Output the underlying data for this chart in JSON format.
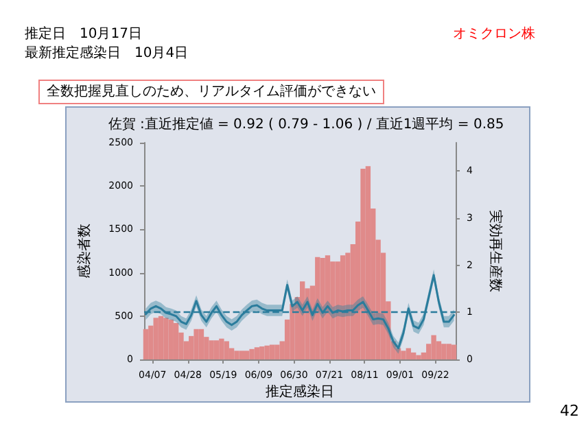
{
  "chart_data": {
    "type": "bar",
    "title": "佐賀 :直近推定値 = 0.92 ( 0.79 - 1.06 ) / 直近1週平均 = 0.85",
    "xlabel": "推定感染日",
    "ylabel": "感染者数",
    "y2label": "実効再生産数",
    "annotations": [
      "推定日　10月17日",
      "最新推定感染日　10月4日",
      "オミクロン株",
      "全数把握見直しのため、リアルタイム評価ができない",
      "42"
    ],
    "x": [
      "--04-03",
      "--04-06",
      "--04-09",
      "--04-12",
      "--04-15",
      "--04-18",
      "--04-21",
      "--04-24",
      "--04-27",
      "--04-30",
      "--05-03",
      "--05-06",
      "--05-09",
      "--05-12",
      "--05-15",
      "--05-18",
      "--05-21",
      "--05-24",
      "--05-27",
      "--05-30",
      "--06-02",
      "--06-05",
      "--06-08",
      "--06-11",
      "--06-14",
      "--06-17",
      "--06-20",
      "--06-23",
      "--06-26",
      "--06-29",
      "--07-02",
      "--07-05",
      "--07-08",
      "--07-11",
      "--07-14",
      "--07-17",
      "--07-20",
      "--07-23",
      "--07-26",
      "--07-29",
      "--08-01",
      "--08-04",
      "--08-07",
      "--08-10",
      "--08-13",
      "--08-16",
      "--08-19",
      "--08-22",
      "--08-25",
      "--08-28",
      "--08-31",
      "--09-03",
      "--09-06",
      "--09-09",
      "--09-12",
      "--09-15",
      "--09-18",
      "--09-21",
      "--09-24",
      "--09-27",
      "--09-30",
      "--10-03"
    ],
    "series": [
      {
        "color": "#e08a8a",
        "values": [
          350,
          390,
          480,
          500,
          480,
          460,
          420,
          310,
          210,
          270,
          350,
          350,
          260,
          220,
          220,
          240,
          210,
          130,
          100,
          100,
          100,
          120,
          140,
          150,
          160,
          170,
          170,
          210,
          460,
          640,
          720,
          900,
          820,
          850,
          1180,
          1170,
          1200,
          1130,
          1130,
          1200,
          1230,
          1330,
          1590,
          2200,
          2230,
          1740,
          1380,
          1230,
          670,
          210,
          130,
          100,
          130,
          80,
          50,
          80,
          180,
          280,
          210,
          180,
          180,
          170
        ]
      },
      {
        "type": "line",
        "axis": "y2",
        "color": "#2a7c9c",
        "values": [
          0.96,
          1.08,
          1.13,
          1.08,
          0.99,
          0.96,
          0.92,
          0.8,
          0.75,
          0.94,
          1.24,
          0.94,
          0.8,
          0.99,
          1.13,
          0.94,
          0.8,
          0.73,
          0.8,
          0.94,
          1.04,
          1.13,
          1.15,
          1.08,
          1.04,
          1.04,
          1.04,
          1.04,
          1.58,
          1.13,
          1.22,
          1.04,
          1.22,
          0.94,
          1.18,
          0.99,
          1.13,
          0.99,
          1.04,
          1.02,
          1.04,
          1.04,
          1.15,
          1.22,
          1.04,
          0.85,
          0.87,
          0.85,
          0.66,
          0.38,
          0.24,
          0.56,
          1.08,
          0.71,
          0.66,
          0.85,
          1.32,
          1.79,
          1.22,
          0.8,
          0.8,
          0.94
        ],
        "lower": [
          0.84,
          0.96,
          1.01,
          0.96,
          0.87,
          0.84,
          0.8,
          0.68,
          0.63,
          0.82,
          1.12,
          0.82,
          0.68,
          0.87,
          1.01,
          0.82,
          0.68,
          0.61,
          0.68,
          0.82,
          0.92,
          1.01,
          1.03,
          0.96,
          0.92,
          0.92,
          0.92,
          0.92,
          1.46,
          1.01,
          1.1,
          0.92,
          1.1,
          0.82,
          1.06,
          0.87,
          1.01,
          0.87,
          0.92,
          0.9,
          0.92,
          0.92,
          1.03,
          1.1,
          0.92,
          0.73,
          0.75,
          0.73,
          0.54,
          0.26,
          0.12,
          0.44,
          0.96,
          0.59,
          0.54,
          0.73,
          1.2,
          1.67,
          1.1,
          0.68,
          0.68,
          0.82
        ],
        "upper": [
          1.08,
          1.2,
          1.25,
          1.2,
          1.11,
          1.08,
          1.04,
          0.92,
          0.87,
          1.06,
          1.36,
          1.06,
          0.92,
          1.11,
          1.25,
          1.06,
          0.92,
          0.85,
          0.92,
          1.06,
          1.16,
          1.25,
          1.27,
          1.2,
          1.16,
          1.16,
          1.16,
          1.16,
          1.7,
          1.25,
          1.34,
          1.16,
          1.34,
          1.06,
          1.3,
          1.11,
          1.25,
          1.11,
          1.16,
          1.14,
          1.16,
          1.16,
          1.27,
          1.34,
          1.16,
          0.97,
          0.99,
          0.97,
          0.78,
          0.5,
          0.36,
          0.68,
          1.2,
          0.83,
          0.78,
          0.97,
          1.44,
          1.91,
          1.34,
          0.92,
          0.92,
          1.06
        ]
      }
    ],
    "xlim": [
      "--04-02",
      "--10-04"
    ],
    "xticks": [
      {
        "value": "--04-07",
        "label": "04/07"
      },
      {
        "value": "--04-28",
        "label": "04/28"
      },
      {
        "value": "--05-19",
        "label": "05/19"
      },
      {
        "value": "--06-09",
        "label": "06/09"
      },
      {
        "value": "--06-30",
        "label": "06/30"
      },
      {
        "value": "--07-21",
        "label": "07/21"
      },
      {
        "value": "--08-11",
        "label": "08/11"
      },
      {
        "value": "--09-01",
        "label": "09/01"
      },
      {
        "value": "--09-22",
        "label": "09/22"
      }
    ],
    "ylim": [
      0,
      2500
    ],
    "yticks": [
      0,
      500,
      1000,
      1500,
      2000,
      2500
    ],
    "y2lim": [
      0,
      4.6
    ],
    "y2ticks": [
      0,
      1,
      2,
      3,
      4
    ],
    "ref_lines": [
      {
        "axis": "y2",
        "value": 1,
        "color": "#2a7c9c",
        "line_style": "dashed"
      }
    ],
    "grid": false,
    "marker": "none",
    "line_style": "solid"
  }
}
